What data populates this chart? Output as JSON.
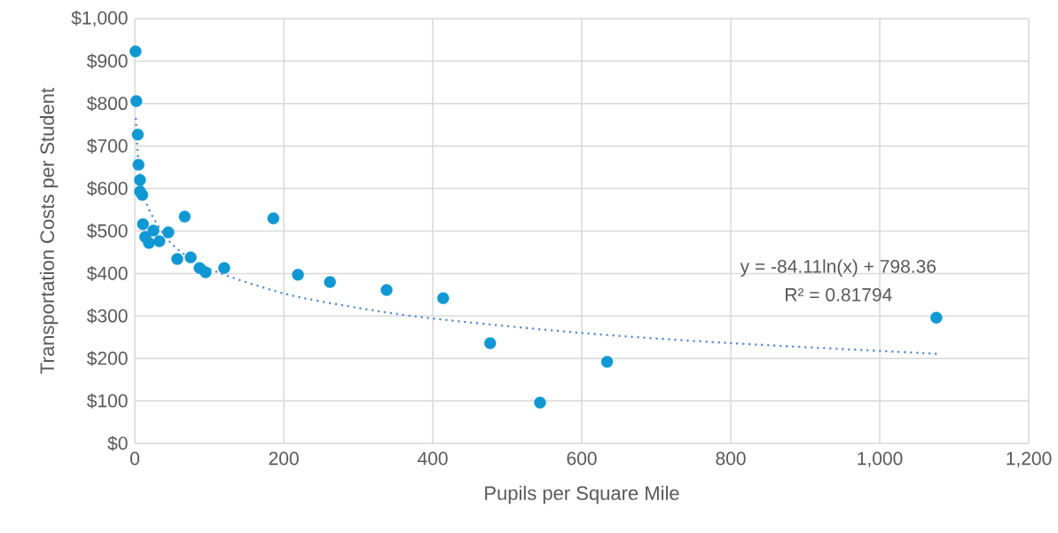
{
  "chart_data": {
    "type": "scatter",
    "xlabel": "Pupils per Square Mile",
    "ylabel": "Transportation Costs per Student",
    "xlim": [
      0,
      1200
    ],
    "ylim": [
      0,
      1000
    ],
    "xticks": [
      0,
      200,
      400,
      600,
      800,
      {
        "value": 1000,
        "label": "1,000"
      },
      {
        "value": 1200,
        "label": "1,200"
      }
    ],
    "yticks": [
      {
        "value": 0,
        "label": "$0"
      },
      {
        "value": 100,
        "label": "$100"
      },
      {
        "value": 200,
        "label": "$200"
      },
      {
        "value": 300,
        "label": "$300"
      },
      {
        "value": 400,
        "label": "$400"
      },
      {
        "value": 500,
        "label": "$500"
      },
      {
        "value": 600,
        "label": "$600"
      },
      {
        "value": 700,
        "label": "$700"
      },
      {
        "value": 800,
        "label": "$800"
      },
      {
        "value": 900,
        "label": "$900"
      },
      {
        "value": 1000,
        "label": "$1,000"
      }
    ],
    "grid": true,
    "annotations": [
      "y = -84.11ln(x) + 798.36",
      "R² = 0.81794"
    ],
    "series": [
      {
        "color": "#0f98d4",
        "marker": "circle",
        "x": [
          1,
          2,
          4,
          5,
          7,
          7,
          10,
          11,
          14,
          19,
          25,
          33,
          45,
          67,
          57,
          75,
          87,
          95,
          120,
          186,
          219,
          262,
          338,
          414,
          477,
          544,
          634,
          1076
        ],
        "values": [
          923,
          806,
          727,
          656,
          620,
          593,
          585,
          516,
          486,
          472,
          501,
          476,
          497,
          534,
          434,
          438,
          413,
          403,
          413,
          530,
          397,
          380,
          361,
          342,
          236,
          96,
          192,
          296
        ]
      },
      {
        "type": "line",
        "color": "#5b8fd0",
        "marker": "none",
        "line_style": "dotted",
        "x": [
          1.5,
          3,
          5,
          10,
          20,
          50,
          100,
          200,
          300,
          400,
          600,
          800,
          1076
        ],
        "values": [
          764,
          706,
          663,
          605,
          547,
          469,
          411,
          353,
          319,
          294,
          260,
          236,
          211
        ]
      }
    ]
  }
}
